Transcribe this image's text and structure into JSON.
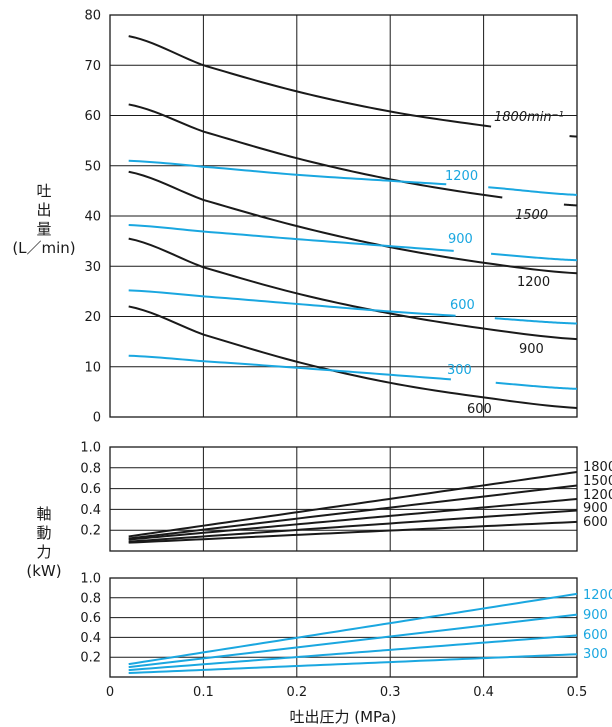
{
  "colors": {
    "black": "#1a1a1a",
    "blue": "#1aa7e0",
    "frame": "#1a1a1a",
    "grid": "#1a1a1a"
  },
  "x_axis": {
    "label": "吐出圧力 (MPa)",
    "range": [
      0,
      0.5
    ],
    "ticks": [
      0,
      0.1,
      0.2,
      0.3,
      0.4,
      0.5
    ],
    "tick_labels": [
      "0",
      "0.1",
      "0.2",
      "0.3",
      "0.4",
      "0.5"
    ]
  },
  "chart_data": [
    {
      "type": "line",
      "ylabel_lines": [
        "吐",
        "出",
        "量",
        "(L／min)"
      ],
      "ylim": [
        0,
        80
      ],
      "yticks": [
        0,
        10,
        20,
        30,
        40,
        50,
        60,
        70,
        80
      ],
      "ytick_labels": [
        "0",
        "10",
        "20",
        "30",
        "40",
        "50",
        "60",
        "70",
        "80"
      ],
      "x": [
        0.02,
        0.1,
        0.2,
        0.3,
        0.4,
        0.5
      ],
      "series": [
        {
          "name": "1800min⁻¹",
          "group": "black",
          "values": [
            75.8,
            70.0,
            64.8,
            60.8,
            58.0,
            55.8
          ]
        },
        {
          "name": "1500",
          "group": "black",
          "values": [
            62.2,
            56.8,
            51.5,
            47.3,
            44.2,
            42.1
          ]
        },
        {
          "name": "1200",
          "group": "black",
          "values": [
            48.8,
            43.2,
            38.0,
            33.8,
            30.7,
            28.6
          ]
        },
        {
          "name": "900",
          "group": "black",
          "values": [
            35.5,
            29.8,
            24.6,
            20.6,
            17.6,
            15.5
          ]
        },
        {
          "name": "600",
          "group": "black",
          "values": [
            22.0,
            16.4,
            11.0,
            6.8,
            3.9,
            1.8
          ]
        },
        {
          "name": "1200",
          "group": "blue",
          "values": [
            51.0,
            49.8,
            48.2,
            47.0,
            45.8,
            44.2
          ]
        },
        {
          "name": "900",
          "group": "blue",
          "values": [
            38.2,
            36.9,
            35.4,
            34.0,
            32.6,
            31.2
          ]
        },
        {
          "name": "600",
          "group": "blue",
          "values": [
            25.2,
            24.0,
            22.5,
            21.0,
            19.8,
            18.6
          ]
        },
        {
          "name": "300",
          "group": "blue",
          "values": [
            12.2,
            11.1,
            9.8,
            8.4,
            7.0,
            5.6
          ]
        }
      ]
    },
    {
      "type": "line",
      "ylabel_lines": [
        "軸",
        "動",
        "力",
        "(kW)"
      ],
      "ylim": [
        0,
        1.0
      ],
      "yticks": [
        0.2,
        0.4,
        0.6,
        0.8,
        1.0
      ],
      "ytick_labels": [
        "0.2",
        "0.4",
        "0.6",
        "0.8",
        "1.0"
      ],
      "x": [
        0.02,
        0.5
      ],
      "series": [
        {
          "name": "1800",
          "group": "black",
          "values": [
            0.14,
            0.76
          ]
        },
        {
          "name": "1500",
          "group": "black",
          "values": [
            0.12,
            0.63
          ]
        },
        {
          "name": "1200",
          "group": "black",
          "values": [
            0.11,
            0.5
          ]
        },
        {
          "name": "900",
          "group": "black",
          "values": [
            0.09,
            0.39
          ]
        },
        {
          "name": "600",
          "group": "black",
          "values": [
            0.08,
            0.28
          ]
        }
      ]
    },
    {
      "type": "line",
      "ylim": [
        0,
        1.0
      ],
      "yticks": [
        0.2,
        0.4,
        0.6,
        0.8,
        1.0
      ],
      "ytick_labels": [
        "0.2",
        "0.4",
        "0.6",
        "0.8",
        "1.0"
      ],
      "x": [
        0.02,
        0.5
      ],
      "series": [
        {
          "name": "1200",
          "group": "blue",
          "values": [
            0.13,
            0.84
          ]
        },
        {
          "name": "900",
          "group": "blue",
          "values": [
            0.1,
            0.63
          ]
        },
        {
          "name": "600",
          "group": "blue",
          "values": [
            0.07,
            0.42
          ]
        },
        {
          "name": "300",
          "group": "blue",
          "values": [
            0.04,
            0.23
          ]
        }
      ]
    }
  ]
}
